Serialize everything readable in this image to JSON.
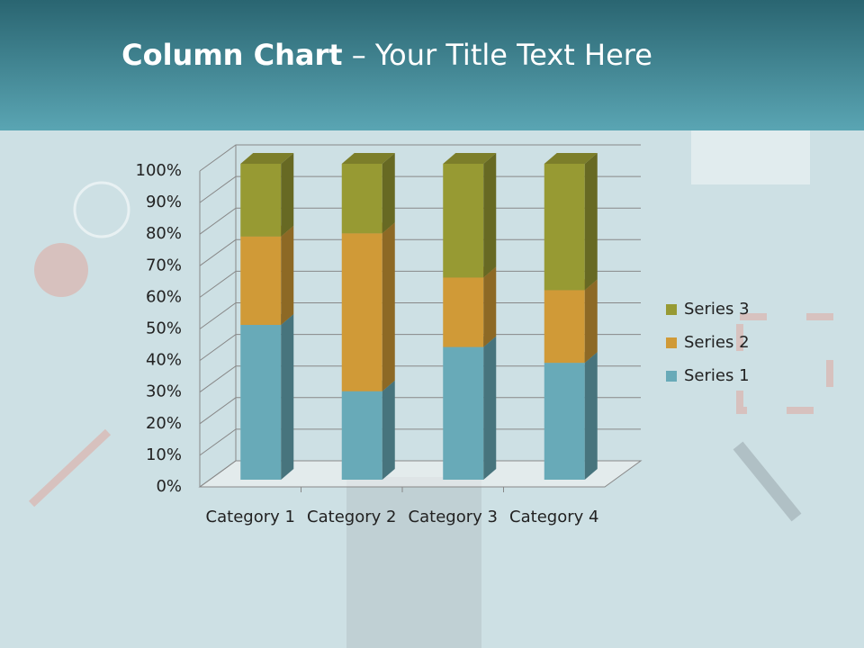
{
  "chart_data": {
    "type": "stacked_bar_3d",
    "title": {
      "bold": "Column Chart",
      "rest": "– Your Title Text Here"
    },
    "categories": [
      "Category 1",
      "Category 2",
      "Category 3",
      "Category 4"
    ],
    "series": [
      {
        "name": "Series 1",
        "color": "#68aab8",
        "values": [
          49,
          28,
          42,
          37
        ]
      },
      {
        "name": "Series 2",
        "color": "#d09a37",
        "values": [
          28,
          50,
          22,
          23
        ]
      },
      {
        "name": "Series 3",
        "color": "#979a33",
        "values": [
          23,
          22,
          36,
          40
        ]
      }
    ],
    "ylim": [
      0,
      100
    ],
    "yticks": [
      {
        "value": 0,
        "label": "0%"
      },
      {
        "value": 10,
        "label": "10%"
      },
      {
        "value": 20,
        "label": "20%"
      },
      {
        "value": 30,
        "label": "30%"
      },
      {
        "value": 40,
        "label": "40%"
      },
      {
        "value": 50,
        "label": "50%"
      },
      {
        "value": 60,
        "label": "60%"
      },
      {
        "value": 70,
        "label": "70%"
      },
      {
        "value": 80,
        "label": "80%"
      },
      {
        "value": 90,
        "label": "90%"
      },
      {
        "value": 100,
        "label": "100%"
      }
    ],
    "grid": true,
    "legend": "right"
  }
}
